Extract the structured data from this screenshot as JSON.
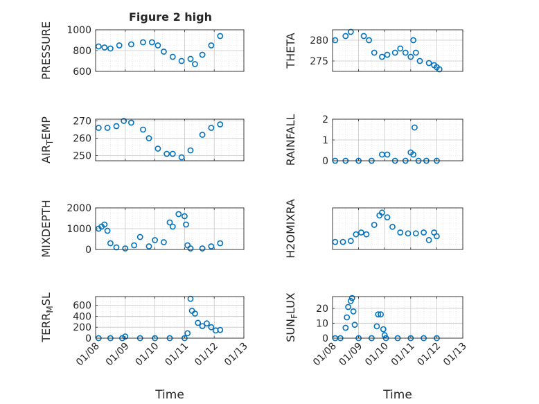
{
  "figure": {
    "title": "Figure 2 high",
    "marker_color": "#0072BD",
    "axis_color": "#262626",
    "grid_color": "#d9d9d9",
    "time_ticks": [
      "01/08",
      "01/09",
      "01/10",
      "01/11",
      "01/12",
      "01/13"
    ]
  },
  "chart_data": [
    {
      "type": "scatter",
      "name": "pressure",
      "ylabel": "PRESSURE",
      "xlabel": "",
      "xlim": [
        8.0,
        13.0
      ],
      "ylim": [
        600,
        1000
      ],
      "yticks": [
        600,
        800,
        1000
      ],
      "grid": true,
      "marker": "circle-open",
      "points": [
        [
          8.1,
          840
        ],
        [
          8.3,
          830
        ],
        [
          8.5,
          820
        ],
        [
          8.8,
          850
        ],
        [
          9.2,
          860
        ],
        [
          9.6,
          880
        ],
        [
          9.9,
          880
        ],
        [
          10.1,
          850
        ],
        [
          10.3,
          790
        ],
        [
          10.6,
          740
        ],
        [
          10.9,
          700
        ],
        [
          11.2,
          720
        ],
        [
          11.35,
          670
        ],
        [
          11.6,
          760
        ],
        [
          11.9,
          850
        ],
        [
          12.2,
          940
        ]
      ]
    },
    {
      "type": "scatter",
      "name": "theta",
      "ylabel": "THETA",
      "xlabel": "",
      "xlim": [
        8.0,
        13.0
      ],
      "ylim": [
        272.5,
        282.5
      ],
      "yticks": [
        275,
        280
      ],
      "grid": true,
      "marker": "circle-open",
      "points": [
        [
          8.1,
          280
        ],
        [
          8.5,
          281
        ],
        [
          8.7,
          282
        ],
        [
          9.2,
          281
        ],
        [
          9.4,
          280
        ],
        [
          9.6,
          277
        ],
        [
          9.9,
          276
        ],
        [
          10.1,
          276.5
        ],
        [
          10.4,
          277
        ],
        [
          10.6,
          278
        ],
        [
          10.8,
          277
        ],
        [
          11.0,
          276
        ],
        [
          11.1,
          280
        ],
        [
          11.2,
          277
        ],
        [
          11.35,
          275
        ],
        [
          11.7,
          274.5
        ],
        [
          11.9,
          274
        ],
        [
          12.0,
          273.5
        ],
        [
          12.1,
          273
        ]
      ]
    },
    {
      "type": "scatter",
      "name": "air-temp",
      "ylabel": "AIR_TEMP",
      "xlabel": "",
      "xlim": [
        8.0,
        13.0
      ],
      "ylim": [
        247,
        271
      ],
      "yticks": [
        250,
        260,
        270
      ],
      "grid": true,
      "marker": "circle-open",
      "points": [
        [
          8.1,
          266
        ],
        [
          8.4,
          266
        ],
        [
          8.7,
          267
        ],
        [
          8.95,
          270
        ],
        [
          9.2,
          269
        ],
        [
          9.6,
          265
        ],
        [
          9.8,
          260
        ],
        [
          10.1,
          254
        ],
        [
          10.4,
          251
        ],
        [
          10.6,
          251
        ],
        [
          10.9,
          249
        ],
        [
          11.2,
          253
        ],
        [
          11.6,
          262
        ],
        [
          11.9,
          266
        ],
        [
          12.2,
          268
        ]
      ]
    },
    {
      "type": "scatter",
      "name": "rainfall",
      "ylabel": "RAINFALL",
      "xlabel": "",
      "xlim": [
        8.0,
        13.0
      ],
      "ylim": [
        0,
        2
      ],
      "yticks": [
        0,
        1,
        2
      ],
      "grid": true,
      "marker": "circle-open",
      "points": [
        [
          8.1,
          0
        ],
        [
          8.5,
          0
        ],
        [
          9.0,
          0
        ],
        [
          9.5,
          0
        ],
        [
          9.9,
          0.3
        ],
        [
          10.1,
          0.3
        ],
        [
          10.4,
          0
        ],
        [
          10.8,
          0
        ],
        [
          11.0,
          0.4
        ],
        [
          11.1,
          0.3
        ],
        [
          11.15,
          1.6
        ],
        [
          11.3,
          0
        ],
        [
          11.6,
          0
        ],
        [
          12.0,
          0
        ]
      ]
    },
    {
      "type": "scatter",
      "name": "mixdepth",
      "ylabel": "MIXDEPTH",
      "xlabel": "",
      "xlim": [
        8.0,
        13.0
      ],
      "ylim": [
        0,
        2000
      ],
      "yticks": [
        0,
        1000,
        2000
      ],
      "grid": true,
      "marker": "circle-open",
      "points": [
        [
          8.1,
          1000
        ],
        [
          8.2,
          1100
        ],
        [
          8.3,
          1200
        ],
        [
          8.4,
          900
        ],
        [
          8.5,
          300
        ],
        [
          8.7,
          100
        ],
        [
          9.0,
          50
        ],
        [
          9.3,
          200
        ],
        [
          9.5,
          600
        ],
        [
          9.8,
          150
        ],
        [
          10.0,
          450
        ],
        [
          10.3,
          350
        ],
        [
          10.5,
          1300
        ],
        [
          10.6,
          1100
        ],
        [
          10.8,
          1700
        ],
        [
          11.0,
          1600
        ],
        [
          11.05,
          1200
        ],
        [
          11.1,
          200
        ],
        [
          11.2,
          50
        ],
        [
          11.6,
          50
        ],
        [
          11.9,
          150
        ],
        [
          12.2,
          300
        ]
      ]
    },
    {
      "type": "scatter",
      "name": "h2omixra",
      "ylabel": "H2OMIXRA",
      "xlabel": "",
      "xlim": [
        8.0,
        13.0
      ],
      "ylim": [
        0,
        2.2
      ],
      "yticks": [],
      "grid": true,
      "marker": "circle-open",
      "points": [
        [
          8.1,
          0.4
        ],
        [
          8.4,
          0.4
        ],
        [
          8.7,
          0.45
        ],
        [
          8.9,
          0.8
        ],
        [
          9.1,
          0.9
        ],
        [
          9.3,
          0.8
        ],
        [
          9.6,
          1.3
        ],
        [
          9.8,
          1.8
        ],
        [
          9.9,
          1.95
        ],
        [
          10.1,
          1.7
        ],
        [
          10.3,
          1.2
        ],
        [
          10.6,
          0.9
        ],
        [
          10.9,
          0.85
        ],
        [
          11.2,
          0.85
        ],
        [
          11.5,
          0.9
        ],
        [
          11.7,
          0.5
        ],
        [
          11.9,
          0.9
        ],
        [
          12.0,
          0.7
        ]
      ]
    },
    {
      "type": "scatter",
      "name": "terr-msl",
      "ylabel": "TERR_MSL",
      "xlabel": "Time",
      "xlim": [
        8.0,
        13.0
      ],
      "ylim": [
        0,
        760
      ],
      "yticks": [
        0,
        200,
        400,
        600
      ],
      "grid": true,
      "marker": "circle-open",
      "points": [
        [
          8.1,
          0
        ],
        [
          8.5,
          0
        ],
        [
          8.9,
          0
        ],
        [
          9.0,
          30
        ],
        [
          9.5,
          0
        ],
        [
          10.0,
          0
        ],
        [
          10.5,
          0
        ],
        [
          11.0,
          0
        ],
        [
          11.1,
          90
        ],
        [
          11.2,
          720
        ],
        [
          11.25,
          500
        ],
        [
          11.35,
          450
        ],
        [
          11.45,
          280
        ],
        [
          11.6,
          220
        ],
        [
          11.75,
          270
        ],
        [
          11.9,
          200
        ],
        [
          12.05,
          140
        ],
        [
          12.2,
          150
        ]
      ]
    },
    {
      "type": "scatter",
      "name": "sun-flux",
      "ylabel": "SUN_FLUX",
      "xlabel": "Time",
      "xlim": [
        8.0,
        13.0
      ],
      "ylim": [
        0,
        28
      ],
      "yticks": [
        0,
        10,
        20
      ],
      "grid": true,
      "marker": "circle-open",
      "points": [
        [
          8.1,
          0
        ],
        [
          8.3,
          0
        ],
        [
          8.5,
          7
        ],
        [
          8.55,
          14
        ],
        [
          8.6,
          21
        ],
        [
          8.7,
          25
        ],
        [
          8.75,
          27
        ],
        [
          8.8,
          18
        ],
        [
          8.85,
          9
        ],
        [
          9.0,
          0
        ],
        [
          9.5,
          0
        ],
        [
          9.7,
          8
        ],
        [
          9.75,
          16
        ],
        [
          9.85,
          16
        ],
        [
          9.95,
          6
        ],
        [
          10.0,
          2
        ],
        [
          10.05,
          0
        ],
        [
          10.5,
          0
        ],
        [
          11.0,
          0
        ],
        [
          11.5,
          0
        ],
        [
          12.0,
          0
        ]
      ]
    }
  ]
}
